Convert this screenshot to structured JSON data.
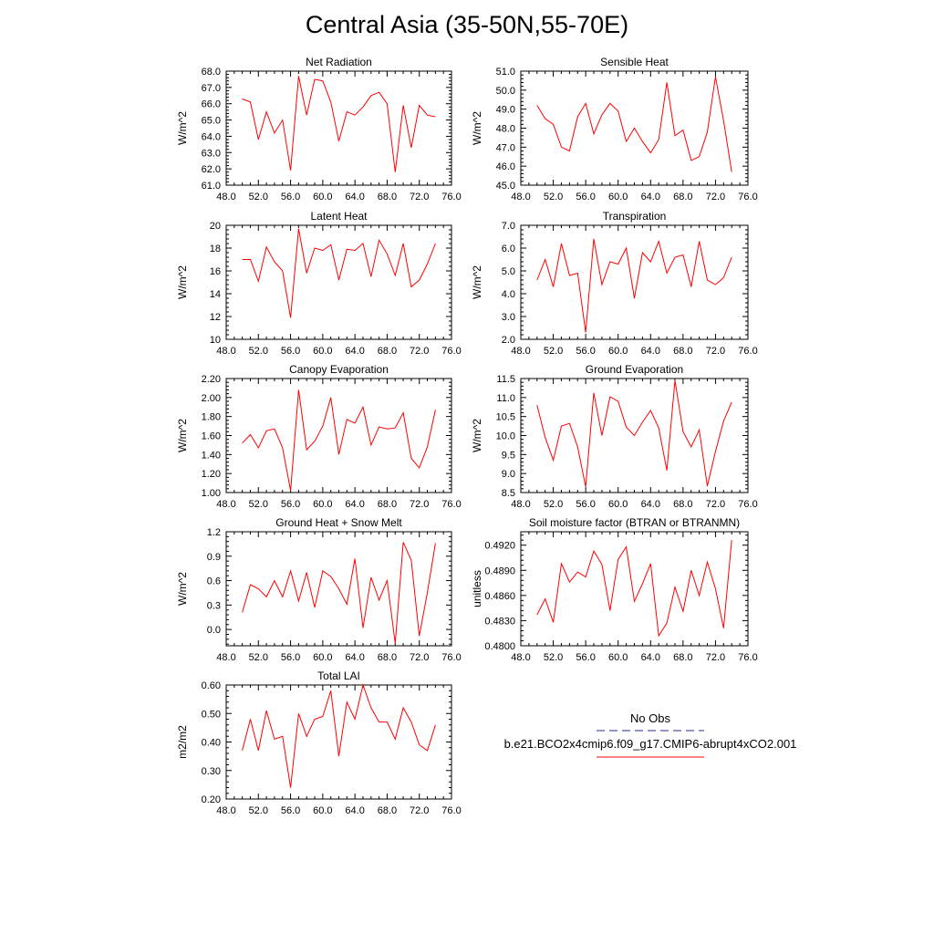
{
  "title": "Central Asia (35-50N,55-70E)",
  "legend": {
    "entries": [
      {
        "name": "No Obs",
        "color": "#2a2a8a",
        "dash": "dashed"
      },
      {
        "name": "b.e21.BCO2x4cmip6.f09_g17.CMIP6-abrupt4xCO2.001",
        "color": "#ff0000",
        "dash": "solid"
      }
    ]
  },
  "chart_data": [
    {
      "type": "line",
      "title": "Net Radiation",
      "ylabel": "W/m^2",
      "xlim": [
        48,
        76
      ],
      "xticks": [
        48,
        52,
        56,
        60,
        64,
        68,
        72,
        76
      ],
      "ylim": [
        61,
        68
      ],
      "yticks": [
        61,
        62,
        63,
        64,
        65,
        66,
        67,
        68
      ],
      "ytick_decimals": 1,
      "series": [
        {
          "color": "#ff0000",
          "x": [
            50,
            51,
            52,
            53,
            54,
            55,
            56,
            57,
            58,
            59,
            60,
            61,
            62,
            63,
            64,
            65,
            66,
            67,
            68,
            69,
            70,
            71,
            72,
            73,
            74
          ],
          "y": [
            66.3,
            66.1,
            63.8,
            65.5,
            64.2,
            65.0,
            61.9,
            67.7,
            65.3,
            67.5,
            67.4,
            66.1,
            63.7,
            65.5,
            65.3,
            65.8,
            66.5,
            66.7,
            66.0,
            61.8,
            65.9,
            63.3,
            65.9,
            65.3,
            65.2
          ]
        }
      ]
    },
    {
      "type": "line",
      "title": "Sensible Heat",
      "ylabel": "W/m^2",
      "xlim": [
        48,
        76
      ],
      "xticks": [
        48,
        52,
        56,
        60,
        64,
        68,
        72,
        76
      ],
      "ylim": [
        45,
        51
      ],
      "yticks": [
        45,
        46,
        47,
        48,
        49,
        50,
        51
      ],
      "ytick_decimals": 1,
      "series": [
        {
          "color": "#ff0000",
          "x": [
            50,
            51,
            52,
            53,
            54,
            55,
            56,
            57,
            58,
            59,
            60,
            61,
            62,
            63,
            64,
            65,
            66,
            67,
            68,
            69,
            70,
            71,
            72,
            73,
            74
          ],
          "y": [
            49.2,
            48.5,
            48.2,
            47.0,
            46.8,
            48.6,
            49.3,
            47.7,
            48.7,
            49.3,
            48.9,
            47.3,
            48.0,
            47.3,
            46.7,
            47.4,
            50.4,
            47.6,
            47.9,
            46.3,
            46.5,
            47.8,
            50.7,
            48.4,
            45.7
          ]
        }
      ]
    },
    {
      "type": "line",
      "title": "Latent Heat",
      "ylabel": "W/m^2",
      "xlim": [
        48,
        76
      ],
      "xticks": [
        48,
        52,
        56,
        60,
        64,
        68,
        72,
        76
      ],
      "ylim": [
        10,
        20
      ],
      "yticks": [
        10,
        12,
        14,
        16,
        18,
        20
      ],
      "ytick_decimals": 0,
      "series": [
        {
          "color": "#ff0000",
          "x": [
            50,
            51,
            52,
            53,
            54,
            55,
            56,
            57,
            58,
            59,
            60,
            61,
            62,
            63,
            64,
            65,
            66,
            67,
            68,
            69,
            70,
            71,
            72,
            73,
            74
          ],
          "y": [
            17.0,
            17.0,
            15.1,
            18.1,
            16.8,
            16.0,
            11.9,
            19.7,
            15.8,
            18.0,
            17.8,
            18.3,
            15.2,
            17.9,
            17.8,
            18.4,
            15.5,
            18.7,
            17.5,
            15.6,
            18.4,
            14.6,
            15.2,
            16.6,
            18.4
          ]
        }
      ]
    },
    {
      "type": "line",
      "title": "Transpiration",
      "ylabel": "W/m^2",
      "xlim": [
        48,
        76
      ],
      "xticks": [
        48,
        52,
        56,
        60,
        64,
        68,
        72,
        76
      ],
      "ylim": [
        2,
        7
      ],
      "yticks": [
        2,
        3,
        4,
        5,
        6,
        7
      ],
      "ytick_decimals": 1,
      "series": [
        {
          "color": "#ff0000",
          "x": [
            50,
            51,
            52,
            53,
            54,
            55,
            56,
            57,
            58,
            59,
            60,
            61,
            62,
            63,
            64,
            65,
            66,
            67,
            68,
            69,
            70,
            71,
            72,
            73,
            74
          ],
          "y": [
            4.6,
            5.5,
            4.3,
            6.2,
            4.8,
            4.9,
            2.3,
            6.4,
            4.4,
            5.4,
            5.3,
            6.0,
            3.8,
            5.8,
            5.4,
            6.3,
            4.9,
            5.6,
            5.7,
            4.3,
            6.3,
            4.6,
            4.4,
            4.7,
            5.6
          ]
        }
      ]
    },
    {
      "type": "line",
      "title": "Canopy Evaporation",
      "ylabel": "W/m^2",
      "xlim": [
        48,
        76
      ],
      "xticks": [
        48,
        52,
        56,
        60,
        64,
        68,
        72,
        76
      ],
      "ylim": [
        1.0,
        2.2
      ],
      "yticks": [
        1.0,
        1.2,
        1.4,
        1.6,
        1.8,
        2.0,
        2.2
      ],
      "ytick_decimals": 2,
      "series": [
        {
          "color": "#ff0000",
          "x": [
            50,
            51,
            52,
            53,
            54,
            55,
            56,
            57,
            58,
            59,
            60,
            61,
            62,
            63,
            64,
            65,
            66,
            67,
            68,
            69,
            70,
            71,
            72,
            73,
            74
          ],
          "y": [
            1.52,
            1.61,
            1.47,
            1.65,
            1.67,
            1.47,
            1.02,
            2.08,
            1.45,
            1.54,
            1.7,
            2.0,
            1.4,
            1.77,
            1.73,
            1.9,
            1.5,
            1.69,
            1.67,
            1.68,
            1.84,
            1.36,
            1.26,
            1.48,
            1.87
          ]
        }
      ]
    },
    {
      "type": "line",
      "title": "Ground Evaporation",
      "ylabel": "W/m^2",
      "xlim": [
        48,
        76
      ],
      "xticks": [
        48,
        52,
        56,
        60,
        64,
        68,
        72,
        76
      ],
      "ylim": [
        8.5,
        11.5
      ],
      "yticks": [
        8.5,
        9.0,
        9.5,
        10.0,
        10.5,
        11.0,
        11.5
      ],
      "ytick_decimals": 1,
      "series": [
        {
          "color": "#ff0000",
          "x": [
            50,
            51,
            52,
            53,
            54,
            55,
            56,
            57,
            58,
            59,
            60,
            61,
            62,
            63,
            64,
            65,
            66,
            67,
            68,
            69,
            70,
            71,
            72,
            73,
            74
          ],
          "y": [
            10.8,
            9.95,
            9.35,
            10.25,
            10.32,
            9.7,
            8.65,
            11.12,
            10.0,
            11.02,
            10.9,
            10.22,
            10.0,
            10.35,
            10.66,
            10.2,
            9.08,
            11.45,
            10.1,
            9.7,
            10.15,
            8.67,
            9.58,
            10.38,
            10.88
          ]
        }
      ]
    },
    {
      "type": "line",
      "title": "Ground Heat + Snow Melt",
      "ylabel": "W/m^2",
      "xlim": [
        48,
        76
      ],
      "xticks": [
        48,
        52,
        56,
        60,
        64,
        68,
        72,
        76
      ],
      "ylim": [
        -0.2,
        1.2
      ],
      "yticks": [
        0.0,
        0.3,
        0.6,
        0.9,
        1.2
      ],
      "ytick_decimals": 1,
      "series": [
        {
          "color": "#ff0000",
          "x": [
            50,
            51,
            52,
            53,
            54,
            55,
            56,
            57,
            58,
            59,
            60,
            61,
            62,
            63,
            64,
            65,
            66,
            67,
            68,
            69,
            70,
            71,
            72,
            73,
            74
          ],
          "y": [
            0.21,
            0.55,
            0.5,
            0.4,
            0.6,
            0.4,
            0.72,
            0.35,
            0.7,
            0.27,
            0.72,
            0.65,
            0.5,
            0.31,
            0.87,
            0.02,
            0.64,
            0.36,
            0.6,
            -0.17,
            1.07,
            0.85,
            -0.08,
            0.45,
            1.06
          ]
        }
      ]
    },
    {
      "type": "line",
      "title": "Soil moisture factor (BTRAN or BTRANMN)",
      "ylabel": "unitless",
      "xlim": [
        48,
        76
      ],
      "xticks": [
        48,
        52,
        56,
        60,
        64,
        68,
        72,
        76
      ],
      "ylim": [
        0.48,
        0.4936
      ],
      "yticks": [
        0.48,
        0.483,
        0.486,
        0.489,
        0.492
      ],
      "ytick_decimals": 4,
      "series": [
        {
          "color": "#ff0000",
          "x": [
            50,
            51,
            52,
            53,
            54,
            55,
            56,
            57,
            58,
            59,
            60,
            61,
            62,
            63,
            64,
            65,
            66,
            67,
            68,
            69,
            70,
            71,
            72,
            73,
            74
          ],
          "y": [
            0.4837,
            0.4856,
            0.4828,
            0.4898,
            0.4876,
            0.4888,
            0.4882,
            0.4913,
            0.4897,
            0.4842,
            0.4903,
            0.4918,
            0.4853,
            0.4874,
            0.4898,
            0.4812,
            0.4827,
            0.487,
            0.4841,
            0.489,
            0.486,
            0.49,
            0.4868,
            0.4821,
            0.4926
          ]
        }
      ]
    },
    {
      "type": "line",
      "title": "Total LAI",
      "ylabel": "m2/m2",
      "xlim": [
        48,
        76
      ],
      "xticks": [
        48,
        52,
        56,
        60,
        64,
        68,
        72,
        76
      ],
      "ylim": [
        0.2,
        0.6
      ],
      "yticks": [
        0.2,
        0.3,
        0.4,
        0.5,
        0.6
      ],
      "ytick_decimals": 2,
      "series": [
        {
          "color": "#ff0000",
          "x": [
            50,
            51,
            52,
            53,
            54,
            55,
            56,
            57,
            58,
            59,
            60,
            61,
            62,
            63,
            64,
            65,
            66,
            67,
            68,
            69,
            70,
            71,
            72,
            73,
            74
          ],
          "y": [
            0.37,
            0.48,
            0.37,
            0.51,
            0.41,
            0.42,
            0.24,
            0.5,
            0.42,
            0.48,
            0.49,
            0.58,
            0.35,
            0.54,
            0.48,
            0.6,
            0.52,
            0.47,
            0.47,
            0.41,
            0.52,
            0.47,
            0.39,
            0.37,
            0.46
          ]
        }
      ]
    }
  ]
}
